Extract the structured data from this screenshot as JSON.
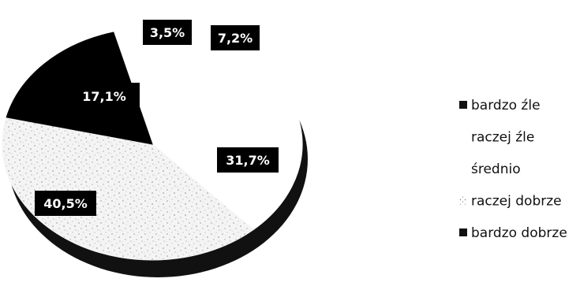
{
  "chart_data": {
    "type": "pie",
    "title": "",
    "categories": [
      "bardzo źle",
      "raczej źle",
      "średnio",
      "raczej dobrze",
      "bardzo dobrze"
    ],
    "values": [
      3.5,
      7.2,
      31.7,
      40.5,
      17.1
    ],
    "data_labels": [
      "3,5%",
      "7,2%",
      "31,7%",
      "40,5%",
      "17,1%"
    ],
    "legend_placement": "right",
    "colors": [
      "#ffffff",
      "#ffffff",
      "#ffffff",
      "#efefef",
      "#000000"
    ]
  }
}
